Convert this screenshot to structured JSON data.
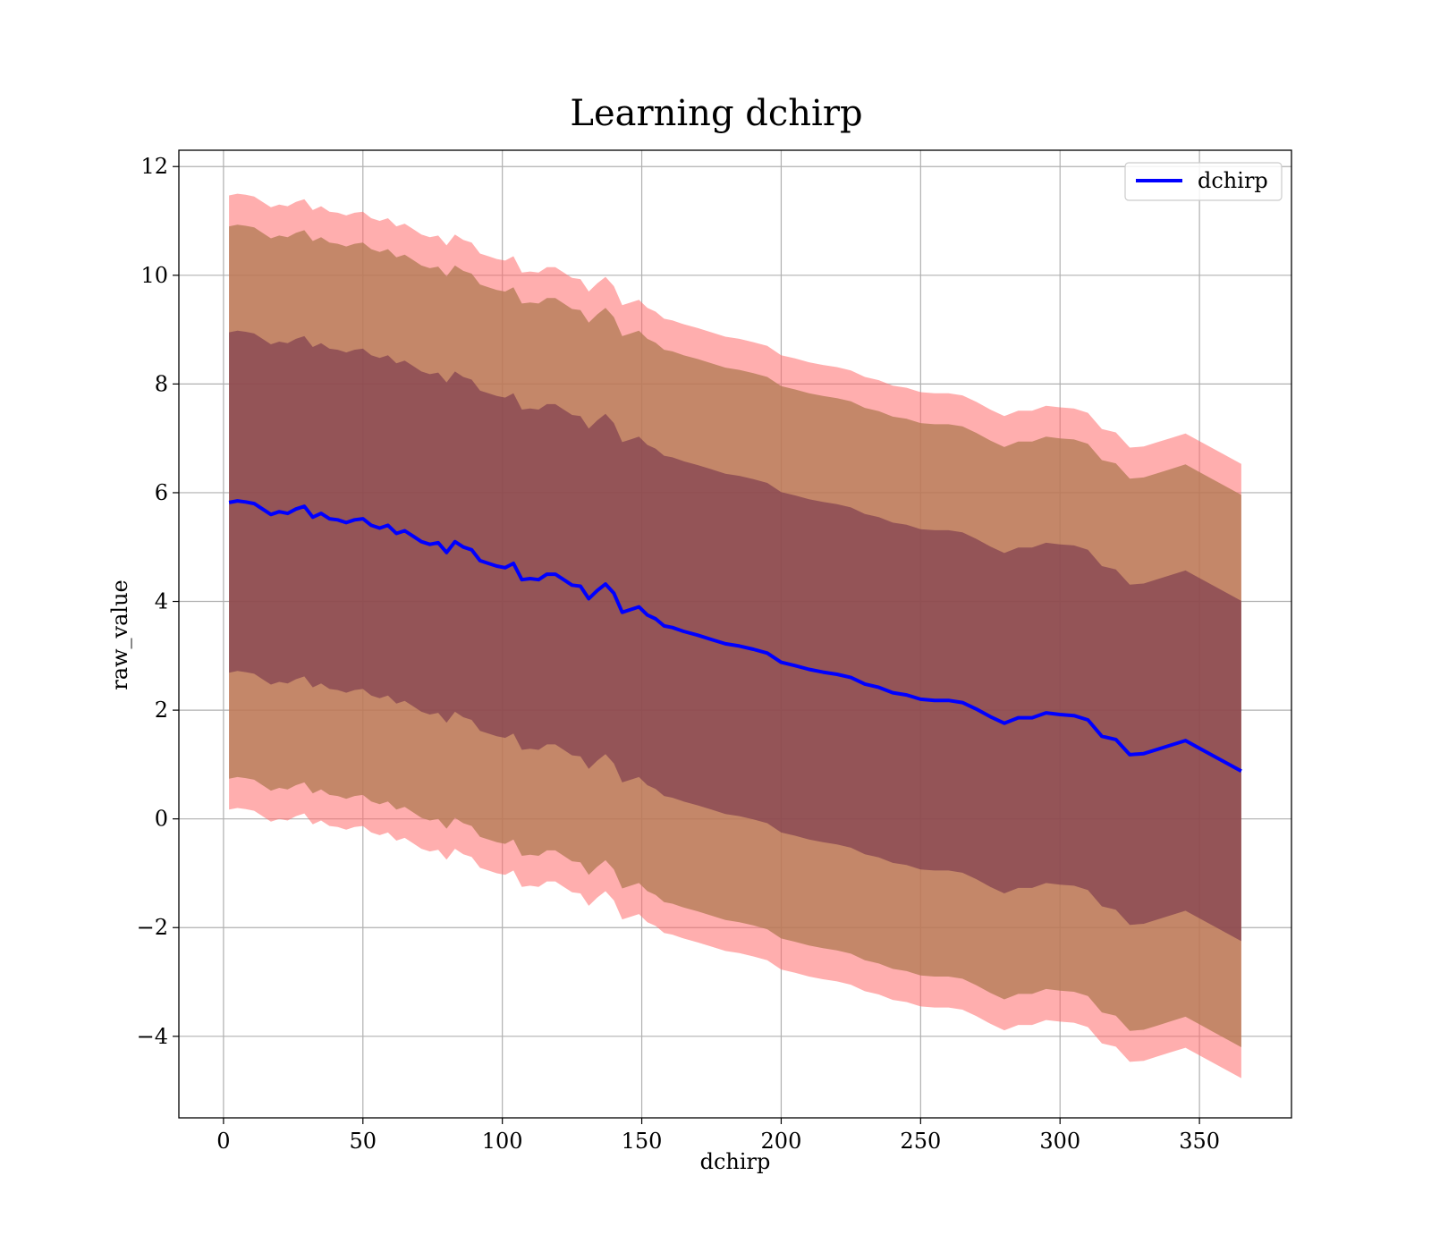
{
  "chart_data": {
    "type": "line",
    "title": "Learning dchirp",
    "xlabel": "dchirp",
    "ylabel": "raw_value",
    "xlim": [
      -16,
      383
    ],
    "ylim": [
      -5.5,
      12.3
    ],
    "xticks": [
      0,
      50,
      100,
      150,
      200,
      250,
      300,
      350
    ],
    "yticks": [
      -4,
      -2,
      0,
      2,
      4,
      6,
      8,
      10,
      12
    ],
    "xtick_labels": [
      "0",
      "50",
      "100",
      "150",
      "200",
      "250",
      "300",
      "350"
    ],
    "ytick_labels": [
      "−4",
      "−2",
      "0",
      "2",
      "4",
      "6",
      "8",
      "10",
      "12"
    ],
    "grid": true,
    "legend": {
      "position": "top-right",
      "entries": [
        "dchirp"
      ]
    },
    "colors": {
      "line": "#0000ff",
      "band_outer": "#ff6b6b",
      "band_middle": "#b07a52",
      "band_inner": "#6e2a49"
    },
    "series": [
      {
        "name": "dchirp",
        "x": [
          2,
          5,
          8,
          11,
          14,
          17,
          20,
          23,
          26,
          29,
          32,
          35,
          38,
          41,
          44,
          47,
          50,
          53,
          56,
          59,
          62,
          65,
          68,
          71,
          74,
          77,
          80,
          83,
          86,
          89,
          92,
          95,
          98,
          101,
          104,
          107,
          110,
          113,
          116,
          119,
          122,
          125,
          128,
          131,
          134,
          137,
          140,
          143,
          146,
          149,
          152,
          155,
          158,
          161,
          165,
          170,
          175,
          180,
          185,
          190,
          195,
          200,
          205,
          210,
          215,
          220,
          225,
          230,
          235,
          240,
          245,
          250,
          255,
          260,
          265,
          270,
          275,
          280,
          285,
          290,
          295,
          300,
          305,
          310,
          315,
          320,
          325,
          330,
          335,
          340,
          345,
          350,
          355,
          360,
          365
        ],
        "values": [
          5.82,
          5.85,
          5.83,
          5.8,
          5.7,
          5.6,
          5.65,
          5.62,
          5.7,
          5.75,
          5.55,
          5.62,
          5.52,
          5.5,
          5.45,
          5.5,
          5.52,
          5.4,
          5.35,
          5.4,
          5.25,
          5.3,
          5.2,
          5.1,
          5.05,
          5.08,
          4.9,
          5.1,
          5.0,
          4.95,
          4.75,
          4.7,
          4.65,
          4.62,
          4.7,
          4.4,
          4.42,
          4.4,
          4.5,
          4.5,
          4.4,
          4.3,
          4.28,
          4.05,
          4.2,
          4.32,
          4.15,
          3.8,
          3.85,
          3.9,
          3.75,
          3.68,
          3.55,
          3.52,
          3.45,
          3.38,
          3.3,
          3.22,
          3.18,
          3.12,
          3.05,
          2.88,
          2.82,
          2.75,
          2.7,
          2.66,
          2.6,
          2.48,
          2.42,
          2.32,
          2.28,
          2.2,
          2.18,
          2.18,
          2.14,
          2.02,
          1.88,
          1.76,
          1.86,
          1.86,
          1.95,
          1.92,
          1.9,
          1.82,
          1.52,
          1.46,
          1.18,
          1.2,
          1.28,
          1.36,
          1.44,
          1.3,
          1.16,
          1.02,
          0.88
        ]
      }
    ],
    "bands": [
      {
        "level": "outer",
        "offset": 5.65
      },
      {
        "level": "middle",
        "offset": 5.08
      },
      {
        "level": "inner",
        "offset": 3.13
      }
    ]
  }
}
